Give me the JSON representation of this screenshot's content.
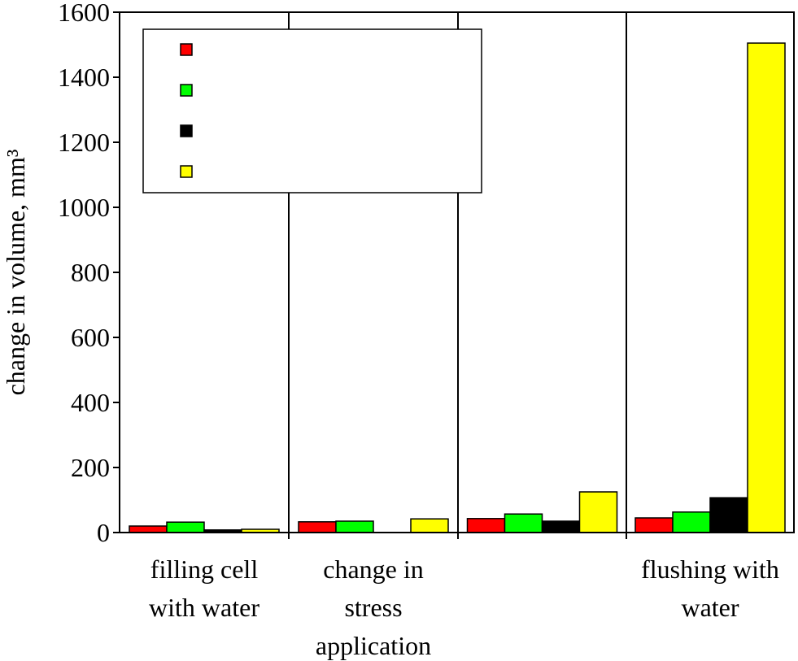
{
  "chart_data": {
    "type": "bar",
    "title": "",
    "xlabel": "",
    "ylabel": "change in volume, mm³",
    "ylim": [
      0,
      1600
    ],
    "yticks": [
      0,
      200,
      400,
      600,
      800,
      1000,
      1200,
      1400,
      1600
    ],
    "grid": false,
    "legend_position": "top-left",
    "categories": [
      [
        "filling cell",
        "with water"
      ],
      [
        "change in",
        "stress",
        "application"
      ],
      [],
      [
        "flushing with",
        "water"
      ]
    ],
    "series": [
      {
        "color": "#ff0000",
        "values": [
          20,
          33,
          43,
          45
        ]
      },
      {
        "color": "#00ff00",
        "values": [
          32,
          35,
          57,
          63
        ]
      },
      {
        "color": "#000000",
        "values": [
          8,
          0,
          35,
          107
        ]
      },
      {
        "color": "#ffff00",
        "values": [
          10,
          42,
          125,
          1505
        ]
      }
    ]
  }
}
